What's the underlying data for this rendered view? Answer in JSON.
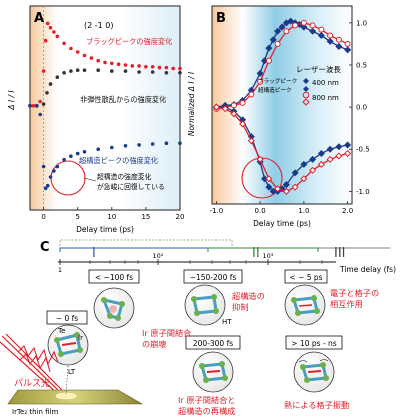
{
  "panel_a": {
    "label": "A",
    "index_label": "(2 -1 0)",
    "xlabel": "Delay time (ps)",
    "ylabel": "Δ I / I",
    "bragg_label": "ブラッグピークの強度変化",
    "inelastic_label": "非弾性散乱からの強度変化",
    "superlattice_label": "超構造ピークの強度変化",
    "note_line1": "超構造の強度変化",
    "note_line2": "が急峻に回復している",
    "xticks": [
      "0",
      "5",
      "10",
      "15",
      "20"
    ],
    "colors": {
      "bragg": "#e0202a",
      "inelastic": "#333333",
      "superlattice": "#1a3a8a"
    }
  },
  "panel_b": {
    "label": "B",
    "xlabel": "Delay time (ps)",
    "ylabel": "Normalized Δ I / I",
    "xticks": [
      "-1.0",
      "0.0",
      "1.0",
      "2.0"
    ],
    "yticks": [
      "1.0",
      "0.5",
      "0.0",
      "-0.5",
      "-1.0"
    ],
    "legend_title": "レーザー波長",
    "legend_bragg": "ブラッグピーク",
    "legend_super": "超構造ピーク",
    "legend_400": "400 nm",
    "legend_800": "800 nm"
  },
  "chart_data": [
    {
      "type": "scatter",
      "panel": "A",
      "xlabel": "Delay time (ps)",
      "ylabel": "ΔI / I",
      "xlim": [
        -2,
        20
      ],
      "series": [
        {
          "name": "ブラッグピーク",
          "x": [
            -2,
            -1.5,
            -1,
            -0.5,
            0,
            0.3,
            0.6,
            1,
            1.5,
            2,
            3,
            4,
            5,
            6,
            7,
            8,
            9,
            10,
            11,
            12,
            13,
            14,
            15,
            16,
            17,
            18,
            19,
            20
          ],
          "y": [
            0,
            0,
            0,
            0.05,
            0.4,
            0.75,
            0.95,
            0.9,
            0.85,
            0.8,
            0.72,
            0.66,
            0.62,
            0.58,
            0.55,
            0.52,
            0.5,
            0.49,
            0.48,
            0.47,
            0.46,
            0.46,
            0.45,
            0.45,
            0.44,
            0.44,
            0.43,
            0.43
          ]
        },
        {
          "name": "非弾性散乱",
          "x": [
            -2,
            -1,
            0,
            0.5,
            1,
            2,
            3,
            4,
            5,
            6,
            8,
            10,
            12,
            14,
            16,
            18,
            20
          ],
          "y": [
            0,
            0,
            0.02,
            0.15,
            0.25,
            0.33,
            0.38,
            0.4,
            0.41,
            0.41,
            0.41,
            0.4,
            0.4,
            0.39,
            0.39,
            0.38,
            0.38
          ]
        },
        {
          "name": "超構造ピーク",
          "x": [
            -2,
            -1,
            -0.5,
            0,
            0.3,
            0.6,
            1,
            1.5,
            2,
            3,
            4,
            5,
            6,
            8,
            10,
            12,
            14,
            16,
            18,
            20
          ],
          "y": [
            0,
            0,
            -0.1,
            -0.7,
            -0.95,
            -0.92,
            -0.82,
            -0.75,
            -0.7,
            -0.62,
            -0.58,
            -0.55,
            -0.53,
            -0.5,
            -0.48,
            -0.46,
            -0.45,
            -0.44,
            -0.43,
            -0.43
          ]
        }
      ]
    },
    {
      "type": "line",
      "panel": "B",
      "xlabel": "Delay time (ps)",
      "ylabel": "Normalized ΔI / I",
      "xlim": [
        -1.1,
        2.1
      ],
      "ylim": [
        -1.15,
        1.2
      ],
      "series": [
        {
          "name": "ブラッグピーク 400 nm",
          "x": [
            -1,
            -0.8,
            -0.6,
            -0.4,
            -0.2,
            0,
            0.1,
            0.2,
            0.3,
            0.4,
            0.5,
            0.6,
            0.7,
            0.8,
            0.9,
            1,
            1.2,
            1.4,
            1.6,
            1.8,
            2
          ],
          "y": [
            0,
            0.02,
            0.03,
            0.08,
            0.2,
            0.4,
            0.55,
            0.7,
            0.8,
            0.9,
            0.95,
            1.0,
            1.02,
            1.0,
            0.98,
            0.95,
            0.9,
            0.85,
            0.78,
            0.72,
            0.68
          ]
        },
        {
          "name": "ブラッグピーク 800 nm",
          "x": [
            -1,
            -0.8,
            -0.6,
            -0.4,
            -0.2,
            0,
            0.2,
            0.4,
            0.6,
            0.8,
            1,
            1.2,
            1.4,
            1.6,
            1.8,
            2
          ],
          "y": [
            -0.02,
            0,
            0.02,
            0.05,
            0.15,
            0.3,
            0.55,
            0.75,
            0.9,
            0.97,
            1.0,
            0.97,
            0.92,
            0.85,
            0.8,
            0.75
          ]
        },
        {
          "name": "超構造ピーク 400 nm",
          "x": [
            -1,
            -0.8,
            -0.6,
            -0.4,
            -0.2,
            0,
            0.1,
            0.2,
            0.3,
            0.4,
            0.5,
            0.6,
            0.8,
            1,
            1.2,
            1.4,
            1.6,
            1.8,
            2
          ],
          "y": [
            0,
            0,
            -0.05,
            -0.15,
            -0.35,
            -0.65,
            -0.85,
            -0.95,
            -1.0,
            -1.0,
            -0.97,
            -0.92,
            -0.78,
            -0.68,
            -0.62,
            -0.55,
            -0.5,
            -0.47,
            -0.45
          ]
        },
        {
          "name": "超構造ピーク 800 nm",
          "x": [
            -1,
            -0.8,
            -0.6,
            -0.4,
            -0.2,
            0,
            0.2,
            0.4,
            0.6,
            0.8,
            1,
            1.2,
            1.4,
            1.6,
            1.8,
            2
          ],
          "y": [
            0,
            -0.02,
            -0.08,
            -0.2,
            -0.4,
            -0.62,
            -0.85,
            -0.97,
            -1.0,
            -0.95,
            -0.85,
            -0.75,
            -0.68,
            -0.62,
            -0.58,
            -0.55
          ]
        }
      ]
    }
  ],
  "panel_c": {
    "label": "C",
    "axis_label": "Time delay (fs)",
    "axis_ticks": [
      "1",
      "10²",
      "10³"
    ],
    "phase_1": "I",
    "phase_2": "II",
    "phase_3": "III",
    "time_0": "~ 0 fs",
    "time_1": "< ~100 fs",
    "time_2": "~150-200 fs",
    "time_3": "200-300 fs",
    "time_4": "< ~ 5 ps",
    "time_5": "> 10 ps - ns",
    "desc_1a": "Ir 原子間結合",
    "desc_1b": "の崩壊",
    "desc_2a": "超構造の",
    "desc_2b": "抑制",
    "desc_3a": "Ir 原子間結合と",
    "desc_3b": "超構造の再構成",
    "desc_4a": "電子と格子の",
    "desc_4b": "相互作用",
    "desc_5": "熱による格子振動",
    "atom_te": "Te",
    "atom_ir": "Ir",
    "state_lt": "LT",
    "state_ht": "HT",
    "pulse_label": "パルス光",
    "film_label": "IrTe₂ thin film"
  }
}
